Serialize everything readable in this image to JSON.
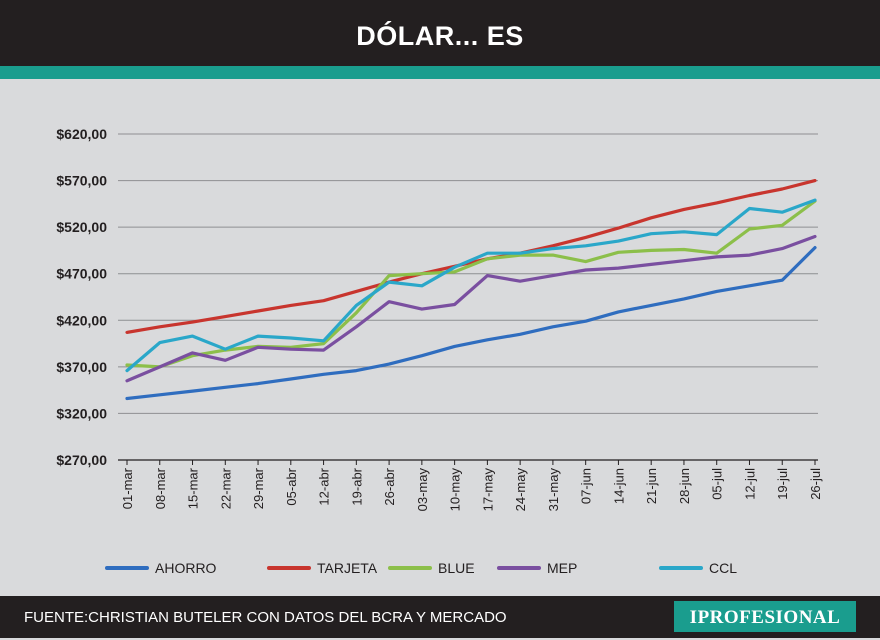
{
  "header": {
    "title": "DÓLAR... ES"
  },
  "footer": {
    "source": "FUENTE:CHRISTIAN BUTELER CON DATOS DEL BCRA Y MERCADO",
    "brand": "IPROFESIONAL"
  },
  "chart_data": {
    "type": "line",
    "title": "DÓLAR... ES",
    "xlabel": "",
    "ylabel": "",
    "ylim": [
      270,
      620
    ],
    "yticks": [
      "$620,00",
      "$570,00",
      "$520,00",
      "$470,00",
      "$420,00",
      "$370,00",
      "$320,00",
      "$270,00"
    ],
    "ytick_values": [
      620,
      570,
      520,
      470,
      420,
      370,
      320,
      270
    ],
    "categories": [
      "01-mar",
      "08-mar",
      "15-mar",
      "22-mar",
      "29-mar",
      "05-abr",
      "12-abr",
      "19-abr",
      "26-abr",
      "03-may",
      "10-may",
      "17-may",
      "24-may",
      "31-may",
      "07-jun",
      "14-jun",
      "21-jun",
      "28-jun",
      "05-jul",
      "12-jul",
      "19-jul",
      "26-jul"
    ],
    "legend_position": "bottom",
    "grid": true,
    "series": [
      {
        "name": "AHORRO",
        "color": "#2f6dbf",
        "values": [
          336,
          340,
          344,
          348,
          352,
          357,
          362,
          366,
          373,
          382,
          392,
          399,
          405,
          413,
          419,
          429,
          436,
          443,
          451,
          457,
          463,
          498
        ]
      },
      {
        "name": "TARJETA",
        "color": "#c8352e",
        "values": [
          407,
          413,
          418,
          424,
          430,
          436,
          441,
          451,
          461,
          470,
          478,
          486,
          492,
          500,
          509,
          519,
          530,
          539,
          546,
          554,
          561,
          570
        ]
      },
      {
        "name": "BLUE",
        "color": "#8cbf4a",
        "values": [
          372,
          370,
          382,
          388,
          392,
          391,
          395,
          428,
          468,
          470,
          472,
          486,
          490,
          490,
          483,
          493,
          495,
          496,
          492,
          518,
          522,
          548
        ]
      },
      {
        "name": "MEP",
        "color": "#7a4fa0",
        "values": [
          355,
          370,
          385,
          377,
          391,
          389,
          388,
          413,
          440,
          432,
          437,
          468,
          462,
          468,
          474,
          476,
          480,
          484,
          488,
          490,
          497,
          510
        ]
      },
      {
        "name": "CCL",
        "color": "#2aa7c9",
        "values": [
          366,
          396,
          403,
          389,
          403,
          401,
          398,
          436,
          461,
          457,
          477,
          492,
          492,
          497,
          500,
          505,
          513,
          515,
          512,
          540,
          536,
          549
        ]
      }
    ]
  }
}
